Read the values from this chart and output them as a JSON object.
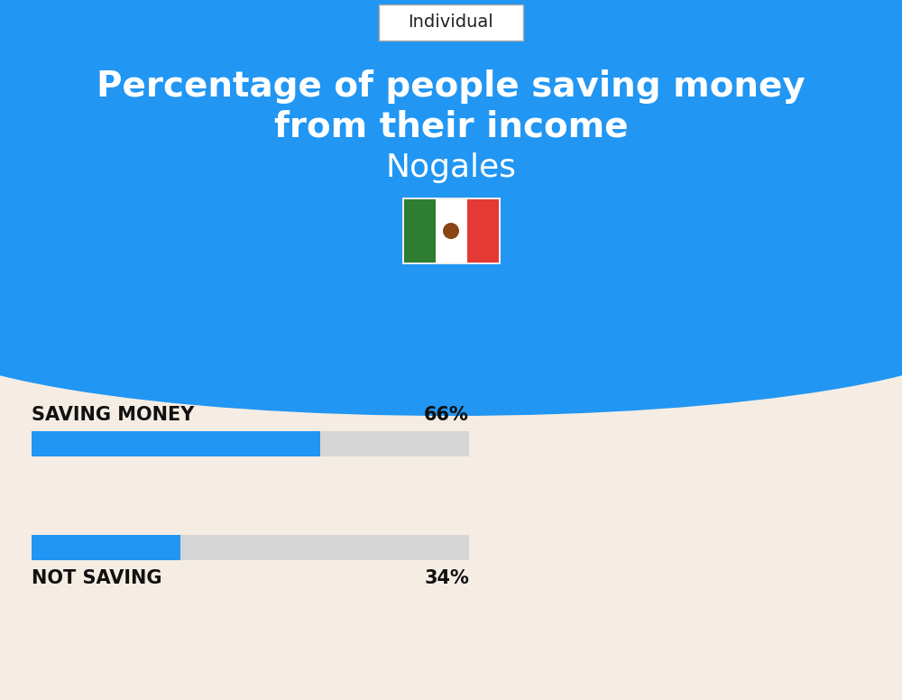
{
  "title_line1": "Percentage of people saving money",
  "title_line2": "from their income",
  "subtitle": "Nogales",
  "tab_label": "Individual",
  "saving_label": "SAVING MONEY",
  "saving_value": 66,
  "saving_pct_text": "66%",
  "not_saving_label": "NOT SAVING",
  "not_saving_value": 34,
  "not_saving_pct_text": "34%",
  "bar_color": "#2196F3",
  "bar_bg_color": "#D5D5D5",
  "bg_color_top": "#2196F3",
  "bg_color_bottom": "#F5EDE3",
  "title_color": "#FFFFFF",
  "label_color": "#111111",
  "tab_bg": "#FFFFFF",
  "tab_text_color": "#222222",
  "flag_green": "#2E7D32",
  "flag_white": "#FFFFFF",
  "flag_red": "#E53935",
  "fig_width": 10.0,
  "fig_height": 7.76,
  "dpi": 100
}
